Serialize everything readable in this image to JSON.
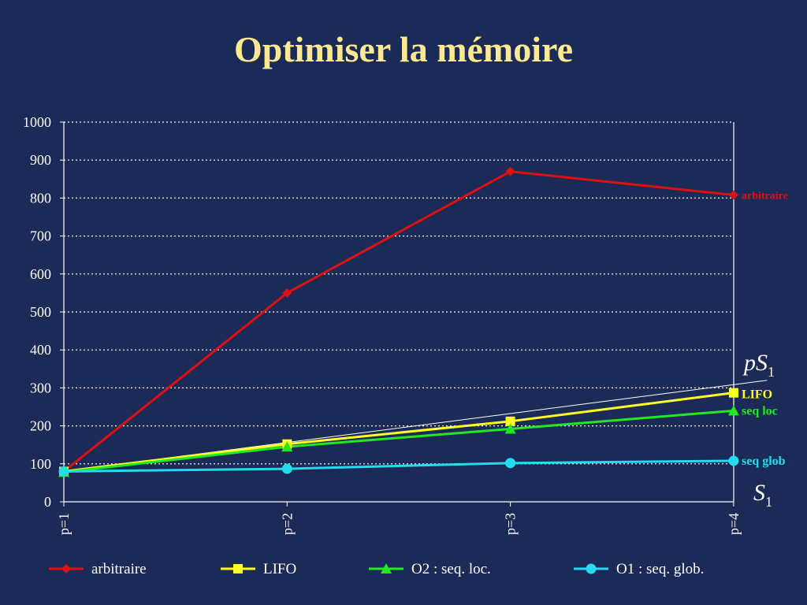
{
  "slide": {
    "title": "Optimiser la mémoire"
  },
  "chart_data": {
    "type": "line",
    "categories": [
      "p=1",
      "p=2",
      "p=3",
      "p=4"
    ],
    "ylim": [
      0,
      1000
    ],
    "yticks": [
      0,
      100,
      200,
      300,
      400,
      500,
      600,
      700,
      800,
      900,
      1000
    ],
    "grid": "horizontal-dotted",
    "legend_position": "bottom",
    "series": [
      {
        "name": "arbitraire",
        "end_label": "arbitraire",
        "values": [
          80,
          550,
          870,
          808
        ],
        "color": "#dd1111",
        "marker": "diamond"
      },
      {
        "name": "LIFO",
        "end_label": "LIFO",
        "values": [
          80,
          152,
          212,
          287
        ],
        "color": "#ffff22",
        "marker": "square"
      },
      {
        "name": "O2 : seq. loc.",
        "end_label": "seq loc",
        "values": [
          78,
          145,
          192,
          240
        ],
        "color": "#22e822",
        "marker": "triangle"
      },
      {
        "name": "O1 : seq. glob.",
        "end_label": "seq glob",
        "values": [
          80,
          87,
          102,
          108
        ],
        "color": "#22ddf0",
        "marker": "circle"
      }
    ],
    "reference_line": {
      "label_main": "pS",
      "label_sub": "1",
      "from": [
        1,
        80
      ],
      "to": [
        4.15,
        320
      ],
      "color": "#ffffff"
    },
    "baseline_label": {
      "main": "S",
      "sub": "1"
    }
  }
}
